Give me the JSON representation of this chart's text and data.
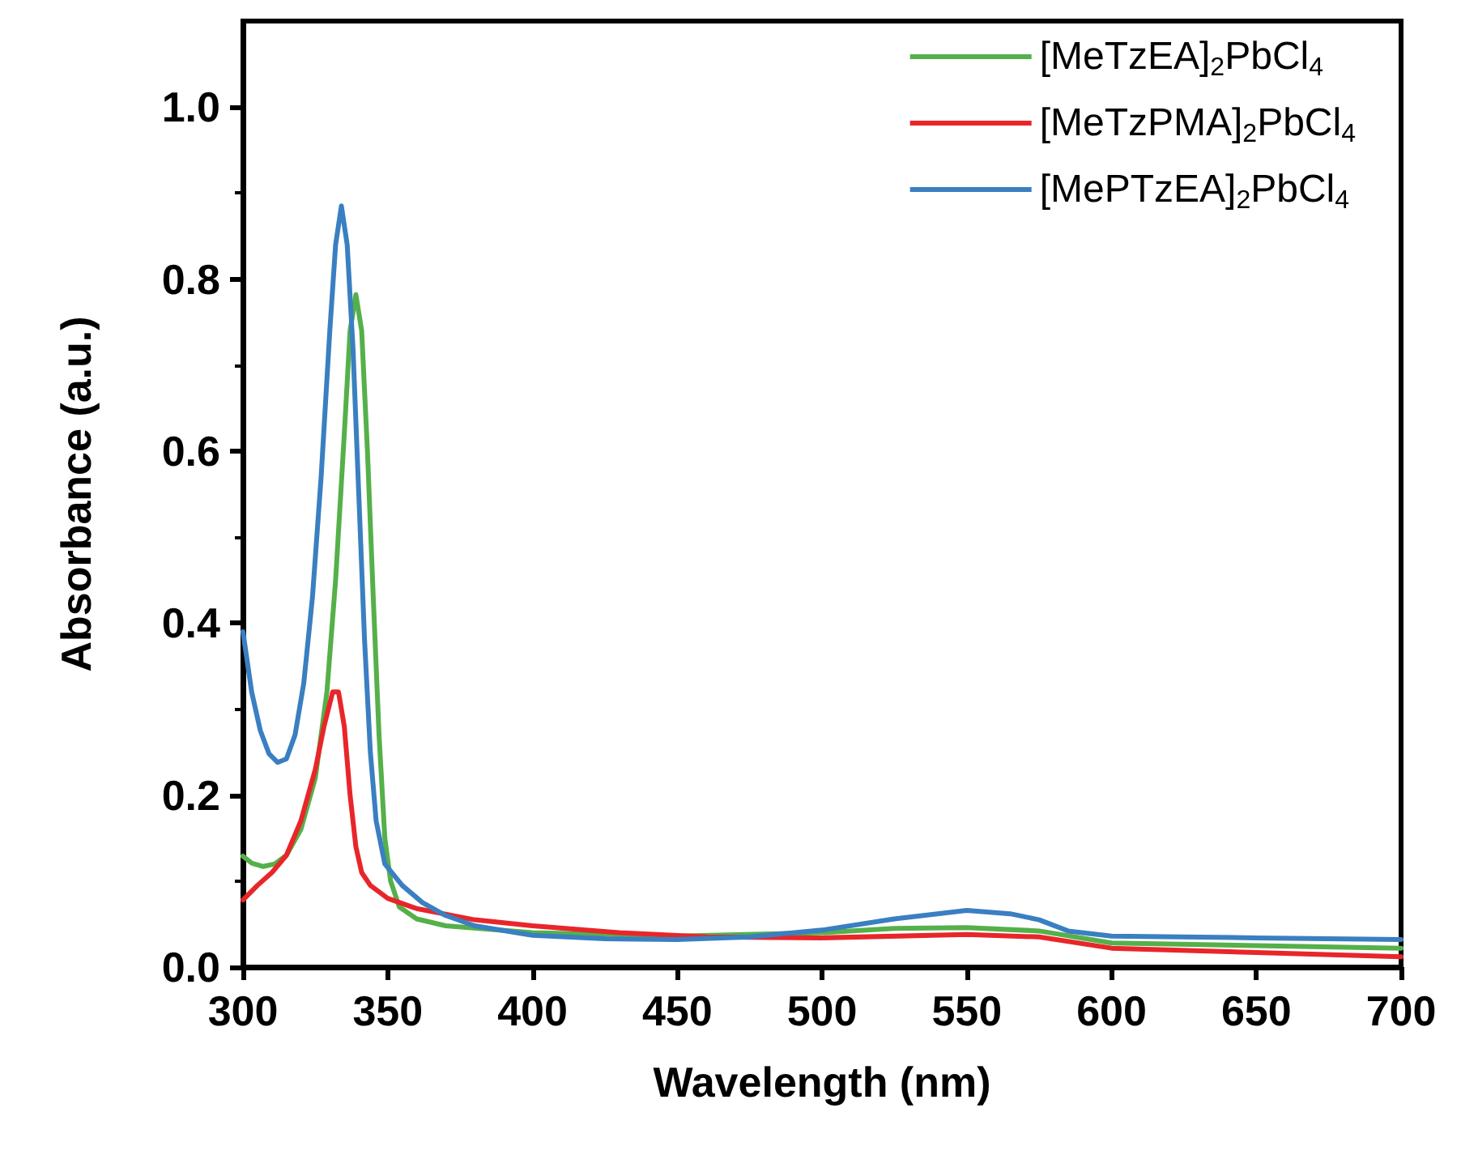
{
  "chart_data": {
    "type": "line",
    "xlabel": "Wavelength (nm)",
    "ylabel": "Absorbance (a.u.)",
    "xlim": [
      300,
      700
    ],
    "xticks": [
      300,
      350,
      400,
      450,
      500,
      550,
      600,
      650,
      700
    ],
    "ylim": [
      0,
      1.1
    ],
    "yticks": [
      {
        "value": 0,
        "label": "0.0"
      },
      0.2,
      0.4,
      0.6,
      0.8,
      {
        "value": 1,
        "label": "1.0"
      }
    ],
    "grid": false,
    "legend": "top right",
    "marker": "none",
    "line_style": "solid",
    "series": [
      {
        "name": "[MeTzEA]$_{2}$PbCl$_{4}$",
        "color": "#55b04a",
        "x": [
          300,
          303,
          307,
          311,
          315,
          320,
          325,
          329,
          332,
          335,
          337,
          339,
          341,
          343,
          345,
          347,
          349,
          351,
          354,
          360,
          370,
          400,
          450,
          500,
          525,
          550,
          575,
          600,
          650,
          700
        ],
        "values": [
          0.129,
          0.121,
          0.117,
          0.12,
          0.13,
          0.16,
          0.22,
          0.32,
          0.45,
          0.62,
          0.74,
          0.782,
          0.74,
          0.6,
          0.43,
          0.27,
          0.15,
          0.1,
          0.07,
          0.056,
          0.048,
          0.04,
          0.036,
          0.04,
          0.045,
          0.046,
          0.042,
          0.028,
          0.025,
          0.022
        ]
      },
      {
        "name": "[MeTzPMA]$_{2}$PbCl$_{4}$",
        "color": "#e8262a",
        "x": [
          300,
          305,
          310,
          315,
          320,
          325,
          328,
          331,
          333,
          335,
          337,
          339,
          341,
          344,
          350,
          360,
          380,
          400,
          430,
          460,
          500,
          550,
          575,
          600,
          650,
          700
        ],
        "values": [
          0.078,
          0.095,
          0.11,
          0.13,
          0.17,
          0.23,
          0.28,
          0.32,
          0.32,
          0.28,
          0.2,
          0.14,
          0.11,
          0.095,
          0.08,
          0.068,
          0.055,
          0.048,
          0.04,
          0.035,
          0.034,
          0.038,
          0.035,
          0.022,
          0.017,
          0.012
        ]
      },
      {
        "name": "[MePTzEA]$_{2}$PbCl$_{4}$",
        "color": "#3a7fc1",
        "x": [
          300,
          303,
          306,
          309,
          312,
          315,
          318,
          321,
          324,
          327,
          330,
          332,
          334,
          336,
          338,
          340,
          342,
          344,
          346,
          349,
          355,
          362,
          370,
          380,
          400,
          425,
          450,
          475,
          500,
          525,
          550,
          565,
          575,
          585,
          600,
          650,
          700
        ],
        "values": [
          0.39,
          0.32,
          0.275,
          0.248,
          0.238,
          0.242,
          0.27,
          0.33,
          0.43,
          0.57,
          0.74,
          0.84,
          0.885,
          0.84,
          0.72,
          0.55,
          0.38,
          0.25,
          0.17,
          0.12,
          0.095,
          0.075,
          0.06,
          0.048,
          0.037,
          0.033,
          0.032,
          0.035,
          0.043,
          0.056,
          0.066,
          0.062,
          0.055,
          0.042,
          0.036,
          0.034,
          0.032
        ]
      }
    ]
  }
}
